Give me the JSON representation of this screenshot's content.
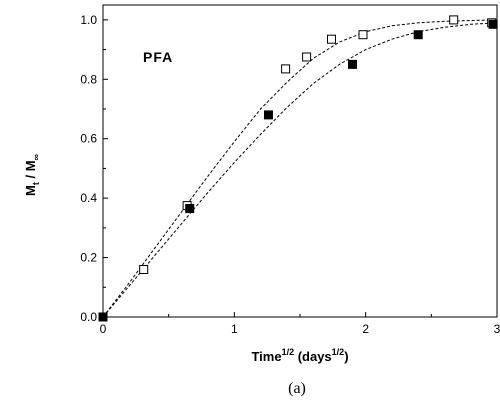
{
  "chart_data": {
    "type": "scatter",
    "annotation": "PFA",
    "caption": "(a)",
    "xlabel": {
      "base": "Time",
      "exp": "1/2",
      "mid": " (days",
      "exp2": "1/2",
      "end": ")"
    },
    "ylabel": {
      "a": "M",
      "a_sub": "t",
      "sep": " / ",
      "b": "M",
      "b_sub": "∞"
    },
    "xlim": [
      0,
      3
    ],
    "ylim": [
      0,
      1.05
    ],
    "xticks": [
      {
        "value": 0,
        "label": "0"
      },
      {
        "value": 1,
        "label": "1"
      },
      {
        "value": 2,
        "label": "2"
      },
      {
        "value": 3,
        "label": "3"
      }
    ],
    "yticks": [
      {
        "value": 0,
        "label": "0.0"
      },
      {
        "value": 0.2,
        "label": "0.2"
      },
      {
        "value": 0.4,
        "label": "0.4"
      },
      {
        "value": 0.6,
        "label": "0.6"
      },
      {
        "value": 0.8,
        "label": "0.8"
      },
      {
        "value": 1.0,
        "label": "1.0"
      }
    ],
    "grid": false,
    "series": [
      {
        "marker": "open-square",
        "color": "#000000",
        "x": [
          0,
          0.31,
          0.64,
          1.39,
          1.55,
          1.74,
          1.98,
          2.67,
          2.96
        ],
        "y": [
          0.0,
          0.16,
          0.375,
          0.835,
          0.875,
          0.935,
          0.95,
          1.0,
          0.99
        ],
        "fit": {
          "x": [
            0,
            0.2,
            0.4,
            0.6,
            0.8,
            1.0,
            1.2,
            1.4,
            1.6,
            1.8,
            2.0,
            2.2,
            2.4,
            2.6,
            2.8,
            3.0
          ],
          "y": [
            0,
            0.115,
            0.235,
            0.355,
            0.475,
            0.59,
            0.7,
            0.79,
            0.87,
            0.925,
            0.96,
            0.98,
            0.99,
            0.995,
            0.998,
            1.0
          ]
        }
      },
      {
        "marker": "filled-square",
        "color": "#000000",
        "x": [
          0,
          0.66,
          1.26,
          1.9,
          2.4,
          2.97
        ],
        "y": [
          0.0,
          0.365,
          0.68,
          0.85,
          0.95,
          0.985
        ],
        "fit": {
          "x": [
            0,
            0.2,
            0.4,
            0.6,
            0.8,
            1.0,
            1.2,
            1.4,
            1.6,
            1.8,
            2.0,
            2.2,
            2.4,
            2.6,
            2.8,
            3.0
          ],
          "y": [
            0,
            0.105,
            0.21,
            0.315,
            0.42,
            0.52,
            0.615,
            0.705,
            0.785,
            0.85,
            0.9,
            0.935,
            0.96,
            0.975,
            0.985,
            0.99
          ]
        }
      }
    ]
  }
}
